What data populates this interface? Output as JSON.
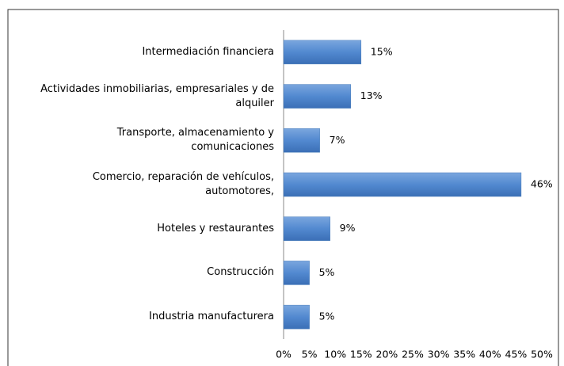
{
  "chart_data": {
    "type": "hbar",
    "categories": [
      "Intermediación financiera",
      "Actividades inmobiliarias, empresariales y de\nalquiler",
      "Transporte, almacenamiento y\ncomunicaciones",
      "Comercio, reparación de vehículos,\nautomotores,",
      "Hoteles y restaurantes",
      "Construcción",
      "Industria manufacturera"
    ],
    "values": [
      15,
      13,
      7,
      46,
      9,
      5,
      5
    ],
    "value_labels": [
      "15%",
      "13%",
      "7%",
      "46%",
      "9%",
      "5%",
      "5%"
    ],
    "color": "#4a7ebb",
    "xlim": [
      0,
      50
    ],
    "xticks": [
      {
        "value": 0,
        "label": "0%"
      },
      {
        "value": 5,
        "label": "5%"
      },
      {
        "value": 10,
        "label": "10%"
      },
      {
        "value": 15,
        "label": "15%"
      },
      {
        "value": 20,
        "label": "20%"
      },
      {
        "value": 25,
        "label": "25%"
      },
      {
        "value": 30,
        "label": "30%"
      },
      {
        "value": 35,
        "label": "35%"
      },
      {
        "value": 40,
        "label": "40%"
      },
      {
        "value": 45,
        "label": "45%"
      },
      {
        "value": 50,
        "label": "50%"
      }
    ],
    "grid": false
  }
}
